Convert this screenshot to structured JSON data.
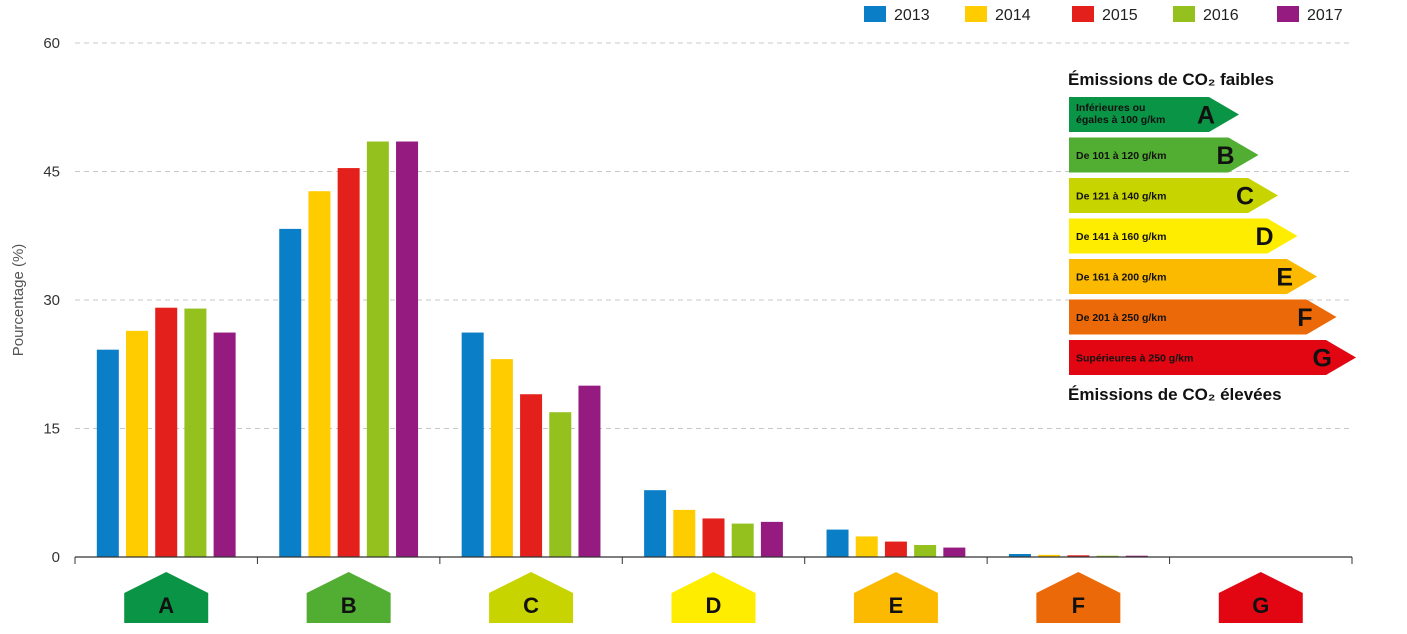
{
  "chart_data": {
    "type": "bar",
    "title": "",
    "xlabel": "",
    "ylabel": "Pourcentage (%)",
    "ylim": [
      0,
      60
    ],
    "yticks": [
      0,
      15,
      30,
      45,
      60
    ],
    "grid": true,
    "legend_position": "top-right",
    "categories": [
      "A",
      "B",
      "C",
      "D",
      "E",
      "F",
      "G"
    ],
    "category_colors": [
      "#0a9445",
      "#52ae32",
      "#c8d400",
      "#ffed00",
      "#fbba00",
      "#eb6909",
      "#e20613"
    ],
    "series": [
      {
        "name": "2013",
        "color": "#0a7fc7",
        "values": [
          24.2,
          38.3,
          26.2,
          7.8,
          3.2,
          0.35,
          0.05
        ]
      },
      {
        "name": "2014",
        "color": "#ffcc00",
        "values": [
          26.4,
          42.7,
          23.1,
          5.5,
          2.4,
          0.25,
          0.05
        ]
      },
      {
        "name": "2015",
        "color": "#e3201b",
        "values": [
          29.1,
          45.4,
          19.0,
          4.5,
          1.8,
          0.2,
          0.05
        ]
      },
      {
        "name": "2016",
        "color": "#95c11f",
        "values": [
          29.0,
          48.5,
          16.9,
          3.9,
          1.4,
          0.15,
          0.05
        ]
      },
      {
        "name": "2017",
        "color": "#951b81",
        "values": [
          26.2,
          48.5,
          20.0,
          4.1,
          1.1,
          0.15,
          0.05
        ]
      }
    ],
    "co2_scale": {
      "title_low": "Émissions de CO₂ faibles",
      "title_high": "Émissions de CO₂ élevées",
      "bands": [
        {
          "letter": "A",
          "color": "#0a9445",
          "desc_lines": [
            "Inférieures ou",
            "égales à 100 g/km"
          ]
        },
        {
          "letter": "B",
          "color": "#52ae32",
          "desc_lines": [
            "De 101 à 120 g/km"
          ]
        },
        {
          "letter": "C",
          "color": "#c8d400",
          "desc_lines": [
            "De 121 à 140 g/km"
          ]
        },
        {
          "letter": "D",
          "color": "#ffed00",
          "desc_lines": [
            "De 141 à 160 g/km"
          ]
        },
        {
          "letter": "E",
          "color": "#fbba00",
          "desc_lines": [
            "De 161 à 200 g/km"
          ]
        },
        {
          "letter": "F",
          "color": "#eb6909",
          "desc_lines": [
            "De 201 à 250 g/km"
          ]
        },
        {
          "letter": "G",
          "color": "#e20613",
          "desc_lines": [
            "Supérieures à 250 g/km"
          ]
        }
      ]
    }
  }
}
